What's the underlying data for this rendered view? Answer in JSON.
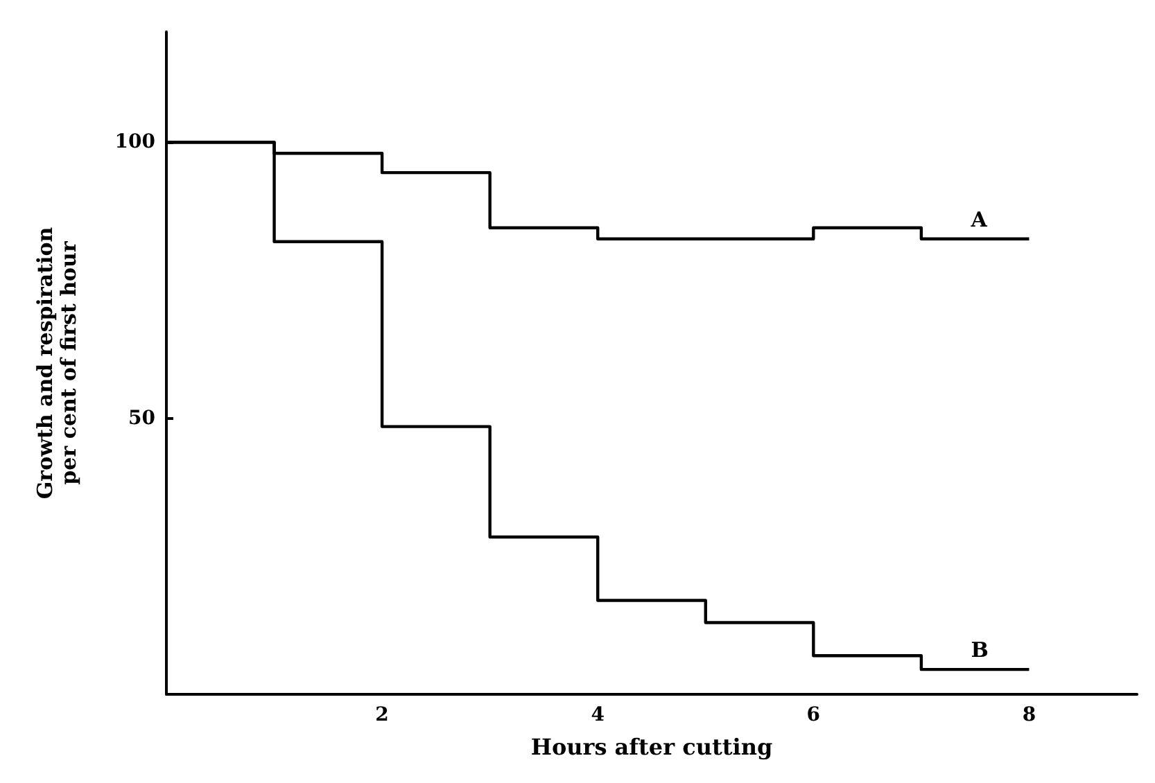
{
  "chart_data": {
    "type": "step",
    "xlabel": "Hours after cutting",
    "ylabel": "Growth and respiration\nper cent of first hour",
    "x": [
      0,
      1,
      2,
      3,
      4,
      5,
      6,
      7,
      8
    ],
    "series": [
      {
        "name": "A",
        "color": "#000000",
        "values": [
          100,
          98,
          94.5,
          84.5,
          82.5,
          82.5,
          84.5,
          82.5,
          82.5
        ]
      },
      {
        "name": "B",
        "color": "#000000",
        "values": [
          100,
          82,
          48.5,
          28.5,
          17,
          13,
          7,
          4.5,
          4.5
        ]
      }
    ],
    "xlim": [
      0,
      9
    ],
    "ylim": [
      0,
      120
    ],
    "xticks": [
      2,
      4,
      6,
      8
    ],
    "yticks": [
      50,
      100
    ],
    "grid": false,
    "legend": false,
    "marker": "none",
    "line_style": "solid"
  }
}
